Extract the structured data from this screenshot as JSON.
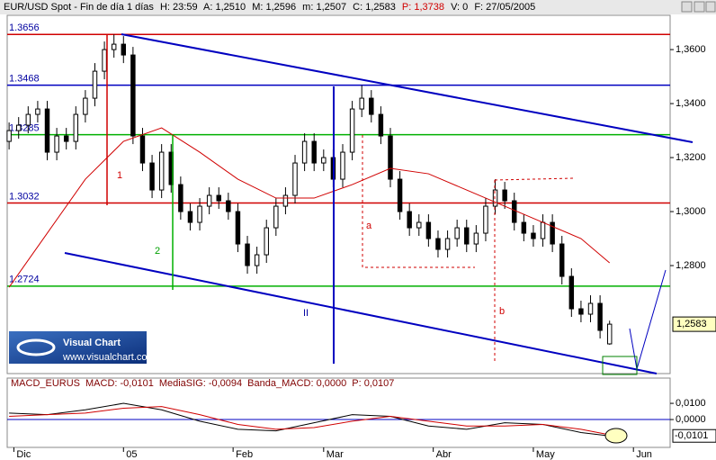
{
  "header": [
    "EUR/USD Spot - Fin de día 1 días",
    "H: 23:59",
    "A: 1,2510",
    "M: 1,2596",
    "m: 1,2507",
    "C: 1,2583",
    "P: 1,3738",
    "V: 0",
    "F: 27/05/2005"
  ],
  "annotations": [
    "1",
    "2",
    "a",
    "b",
    "II"
  ],
  "logo": {
    "title": "Visual Chart",
    "url": "www.visualchart.com"
  },
  "chart_data": [
    {
      "type": "candlestick",
      "x": [
        0,
        2,
        4,
        6,
        8,
        10,
        12,
        14,
        16,
        18,
        20,
        22,
        24,
        26,
        28,
        30,
        32,
        34,
        36,
        38,
        40,
        42,
        44,
        46,
        48,
        50,
        52,
        54,
        56,
        58,
        60,
        62,
        64,
        66,
        68,
        70,
        72,
        74,
        76,
        78,
        80,
        82,
        84,
        86,
        88,
        90,
        92,
        94,
        96,
        98,
        100,
        102,
        104,
        106,
        108,
        110,
        112,
        114,
        116,
        118,
        120,
        122,
        124,
        126
      ],
      "open": [
        1.326,
        1.33,
        1.332,
        1.336,
        1.338,
        1.322,
        1.328,
        1.326,
        1.336,
        1.342,
        1.352,
        1.36,
        1.362,
        1.358,
        1.328,
        1.318,
        1.308,
        1.322,
        1.31,
        1.3,
        1.296,
        1.302,
        1.306,
        1.304,
        1.3,
        1.288,
        1.28,
        1.284,
        1.294,
        1.302,
        1.306,
        1.318,
        1.326,
        1.318,
        1.32,
        1.312,
        1.322,
        1.338,
        1.342,
        1.336,
        1.328,
        1.312,
        1.3,
        1.294,
        1.296,
        1.29,
        1.286,
        1.29,
        1.294,
        1.288,
        1.292,
        1.302,
        1.308,
        1.304,
        1.296,
        1.292,
        1.29,
        1.296,
        1.288,
        1.276,
        1.264,
        1.262,
        1.266,
        1.251
      ],
      "high": [
        1.333,
        1.335,
        1.339,
        1.341,
        1.341,
        1.331,
        1.331,
        1.339,
        1.345,
        1.355,
        1.363,
        1.3656,
        1.365,
        1.361,
        1.331,
        1.321,
        1.325,
        1.325,
        1.313,
        1.303,
        1.305,
        1.309,
        1.309,
        1.307,
        1.303,
        1.291,
        1.287,
        1.297,
        1.305,
        1.309,
        1.321,
        1.329,
        1.329,
        1.323,
        1.323,
        1.325,
        1.341,
        1.3468,
        1.345,
        1.339,
        1.331,
        1.315,
        1.303,
        1.299,
        1.299,
        1.293,
        1.293,
        1.297,
        1.297,
        1.295,
        1.305,
        1.312,
        1.311,
        1.307,
        1.299,
        1.295,
        1.299,
        1.299,
        1.291,
        1.279,
        1.267,
        1.269,
        1.269,
        1.2596
      ],
      "low": [
        1.323,
        1.327,
        1.329,
        1.333,
        1.319,
        1.319,
        1.323,
        1.323,
        1.333,
        1.339,
        1.349,
        1.357,
        1.355,
        1.325,
        1.315,
        1.305,
        1.305,
        1.307,
        1.297,
        1.293,
        1.293,
        1.299,
        1.301,
        1.297,
        1.285,
        1.277,
        1.277,
        1.281,
        1.291,
        1.299,
        1.303,
        1.315,
        1.315,
        1.315,
        1.309,
        1.309,
        1.319,
        1.335,
        1.333,
        1.325,
        1.309,
        1.297,
        1.291,
        1.291,
        1.287,
        1.283,
        1.283,
        1.287,
        1.285,
        1.285,
        1.289,
        1.299,
        1.301,
        1.293,
        1.289,
        1.287,
        1.287,
        1.285,
        1.273,
        1.261,
        1.259,
        1.259,
        1.253,
        1.2507
      ],
      "close": [
        1.33,
        1.332,
        1.336,
        1.338,
        1.322,
        1.328,
        1.326,
        1.336,
        1.342,
        1.352,
        1.36,
        1.362,
        1.358,
        1.328,
        1.318,
        1.308,
        1.322,
        1.31,
        1.3,
        1.296,
        1.302,
        1.306,
        1.304,
        1.3,
        1.288,
        1.28,
        1.284,
        1.294,
        1.302,
        1.306,
        1.318,
        1.326,
        1.318,
        1.32,
        1.312,
        1.322,
        1.338,
        1.342,
        1.336,
        1.328,
        1.312,
        1.3,
        1.294,
        1.296,
        1.29,
        1.286,
        1.29,
        1.294,
        1.288,
        1.292,
        1.302,
        1.308,
        1.304,
        1.296,
        1.292,
        1.29,
        1.296,
        1.288,
        1.276,
        1.264,
        1.262,
        1.266,
        1.256,
        1.2583
      ],
      "overlay": {
        "color": "#d00000",
        "x": [
          0,
          8,
          16,
          24,
          32,
          40,
          48,
          56,
          64,
          72,
          80,
          88,
          96,
          104,
          112,
          120,
          126
        ],
        "values": [
          1.272,
          1.292,
          1.312,
          1.326,
          1.331,
          1.322,
          1.312,
          1.305,
          1.305,
          1.31,
          1.316,
          1.314,
          1.308,
          1.302,
          1.296,
          1.29,
          1.281
        ]
      },
      "levels": [
        {
          "value": 1.3656,
          "color": "#d00000"
        },
        {
          "value": 1.3468,
          "color": "#0000c0"
        },
        {
          "value": 1.3285,
          "color": "#00b000"
        },
        {
          "value": 1.3032,
          "color": "#d00000"
        },
        {
          "value": 1.2724,
          "color": "#00b000"
        }
      ],
      "last": {
        "value": 1.2583,
        "label": "1,2583"
      },
      "xlim": [
        -0.4,
        138.7
      ],
      "xticks": [
        {
          "value": 1,
          "label": "Dic"
        },
        {
          "value": 24,
          "label": "05"
        },
        {
          "value": 47,
          "label": "Feb"
        },
        {
          "value": 66,
          "label": "Mar"
        },
        {
          "value": 89,
          "label": "Abr"
        },
        {
          "value": 110,
          "label": "May"
        },
        {
          "value": 131,
          "label": "Jun"
        }
      ],
      "ylim": [
        1.24,
        1.3727
      ],
      "yticks": [
        {
          "value": 1.28,
          "label": "1,2800"
        },
        {
          "value": 1.3,
          "label": "1,3000"
        },
        {
          "value": 1.32,
          "label": "1,3200"
        },
        {
          "value": 1.34,
          "label": "1,3400"
        },
        {
          "value": 1.36,
          "label": "1,3600"
        }
      ]
    },
    {
      "type": "line",
      "legend": [
        "MACD_EURUS",
        "MACD: -0,0101",
        "MediaSIG: -0,0094",
        "Banda_MACD: 0,0000",
        "P: 0,0107"
      ],
      "x": [
        0,
        8,
        16,
        24,
        32,
        40,
        48,
        56,
        64,
        72,
        80,
        88,
        96,
        104,
        112,
        120,
        126
      ],
      "series": [
        {
          "color": "#000000",
          "values": [
            0.004,
            0.003,
            0.006,
            0.01,
            0.006,
            -0.001,
            -0.006,
            -0.007,
            -0.002,
            0.003,
            0.002,
            -0.004,
            -0.006,
            -0.002,
            -0.003,
            -0.008,
            -0.0101
          ]
        },
        {
          "color": "#d00000",
          "values": [
            0.002,
            0.003,
            0.004,
            0.007,
            0.008,
            0.003,
            -0.003,
            -0.006,
            -0.005,
            -0.001,
            0.002,
            -0.001,
            -0.004,
            -0.004,
            -0.003,
            -0.006,
            -0.0094
          ]
        }
      ],
      "last": {
        "value": -0.0101,
        "label": "-0,0101"
      },
      "xlim": [
        -0.4,
        138.7
      ],
      "ylim": [
        -0.0172,
        0.0256
      ],
      "yticks": [
        {
          "value": 0,
          "label": "0,0000"
        },
        {
          "value": 0.01,
          "label": "0,0100"
        }
      ]
    }
  ]
}
